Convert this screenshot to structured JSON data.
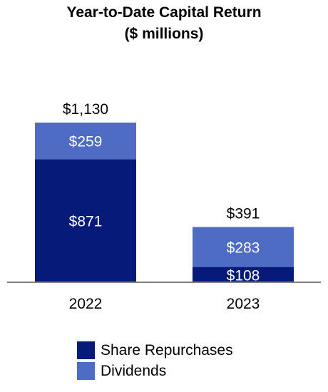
{
  "chart_data": {
    "type": "bar",
    "stacked": true,
    "title": "Year-to-Date Capital Return",
    "subtitle": "($ millions)",
    "categories": [
      "2022",
      "2023"
    ],
    "series": [
      {
        "name": "Share Repurchases",
        "values": [
          871,
          108
        ],
        "labels": [
          "$871",
          "$108"
        ],
        "color": "#061a7a"
      },
      {
        "name": "Dividends",
        "values": [
          259,
          283
        ],
        "labels": [
          "$259",
          "$283"
        ],
        "color": "#4f6cc4"
      }
    ],
    "totals": [
      1130,
      391
    ],
    "total_labels": [
      "$1,130",
      "$391"
    ],
    "ylim": [
      0,
      1130
    ],
    "grid": false,
    "legend_position": "bottom",
    "xlabel": "",
    "ylabel": ""
  }
}
